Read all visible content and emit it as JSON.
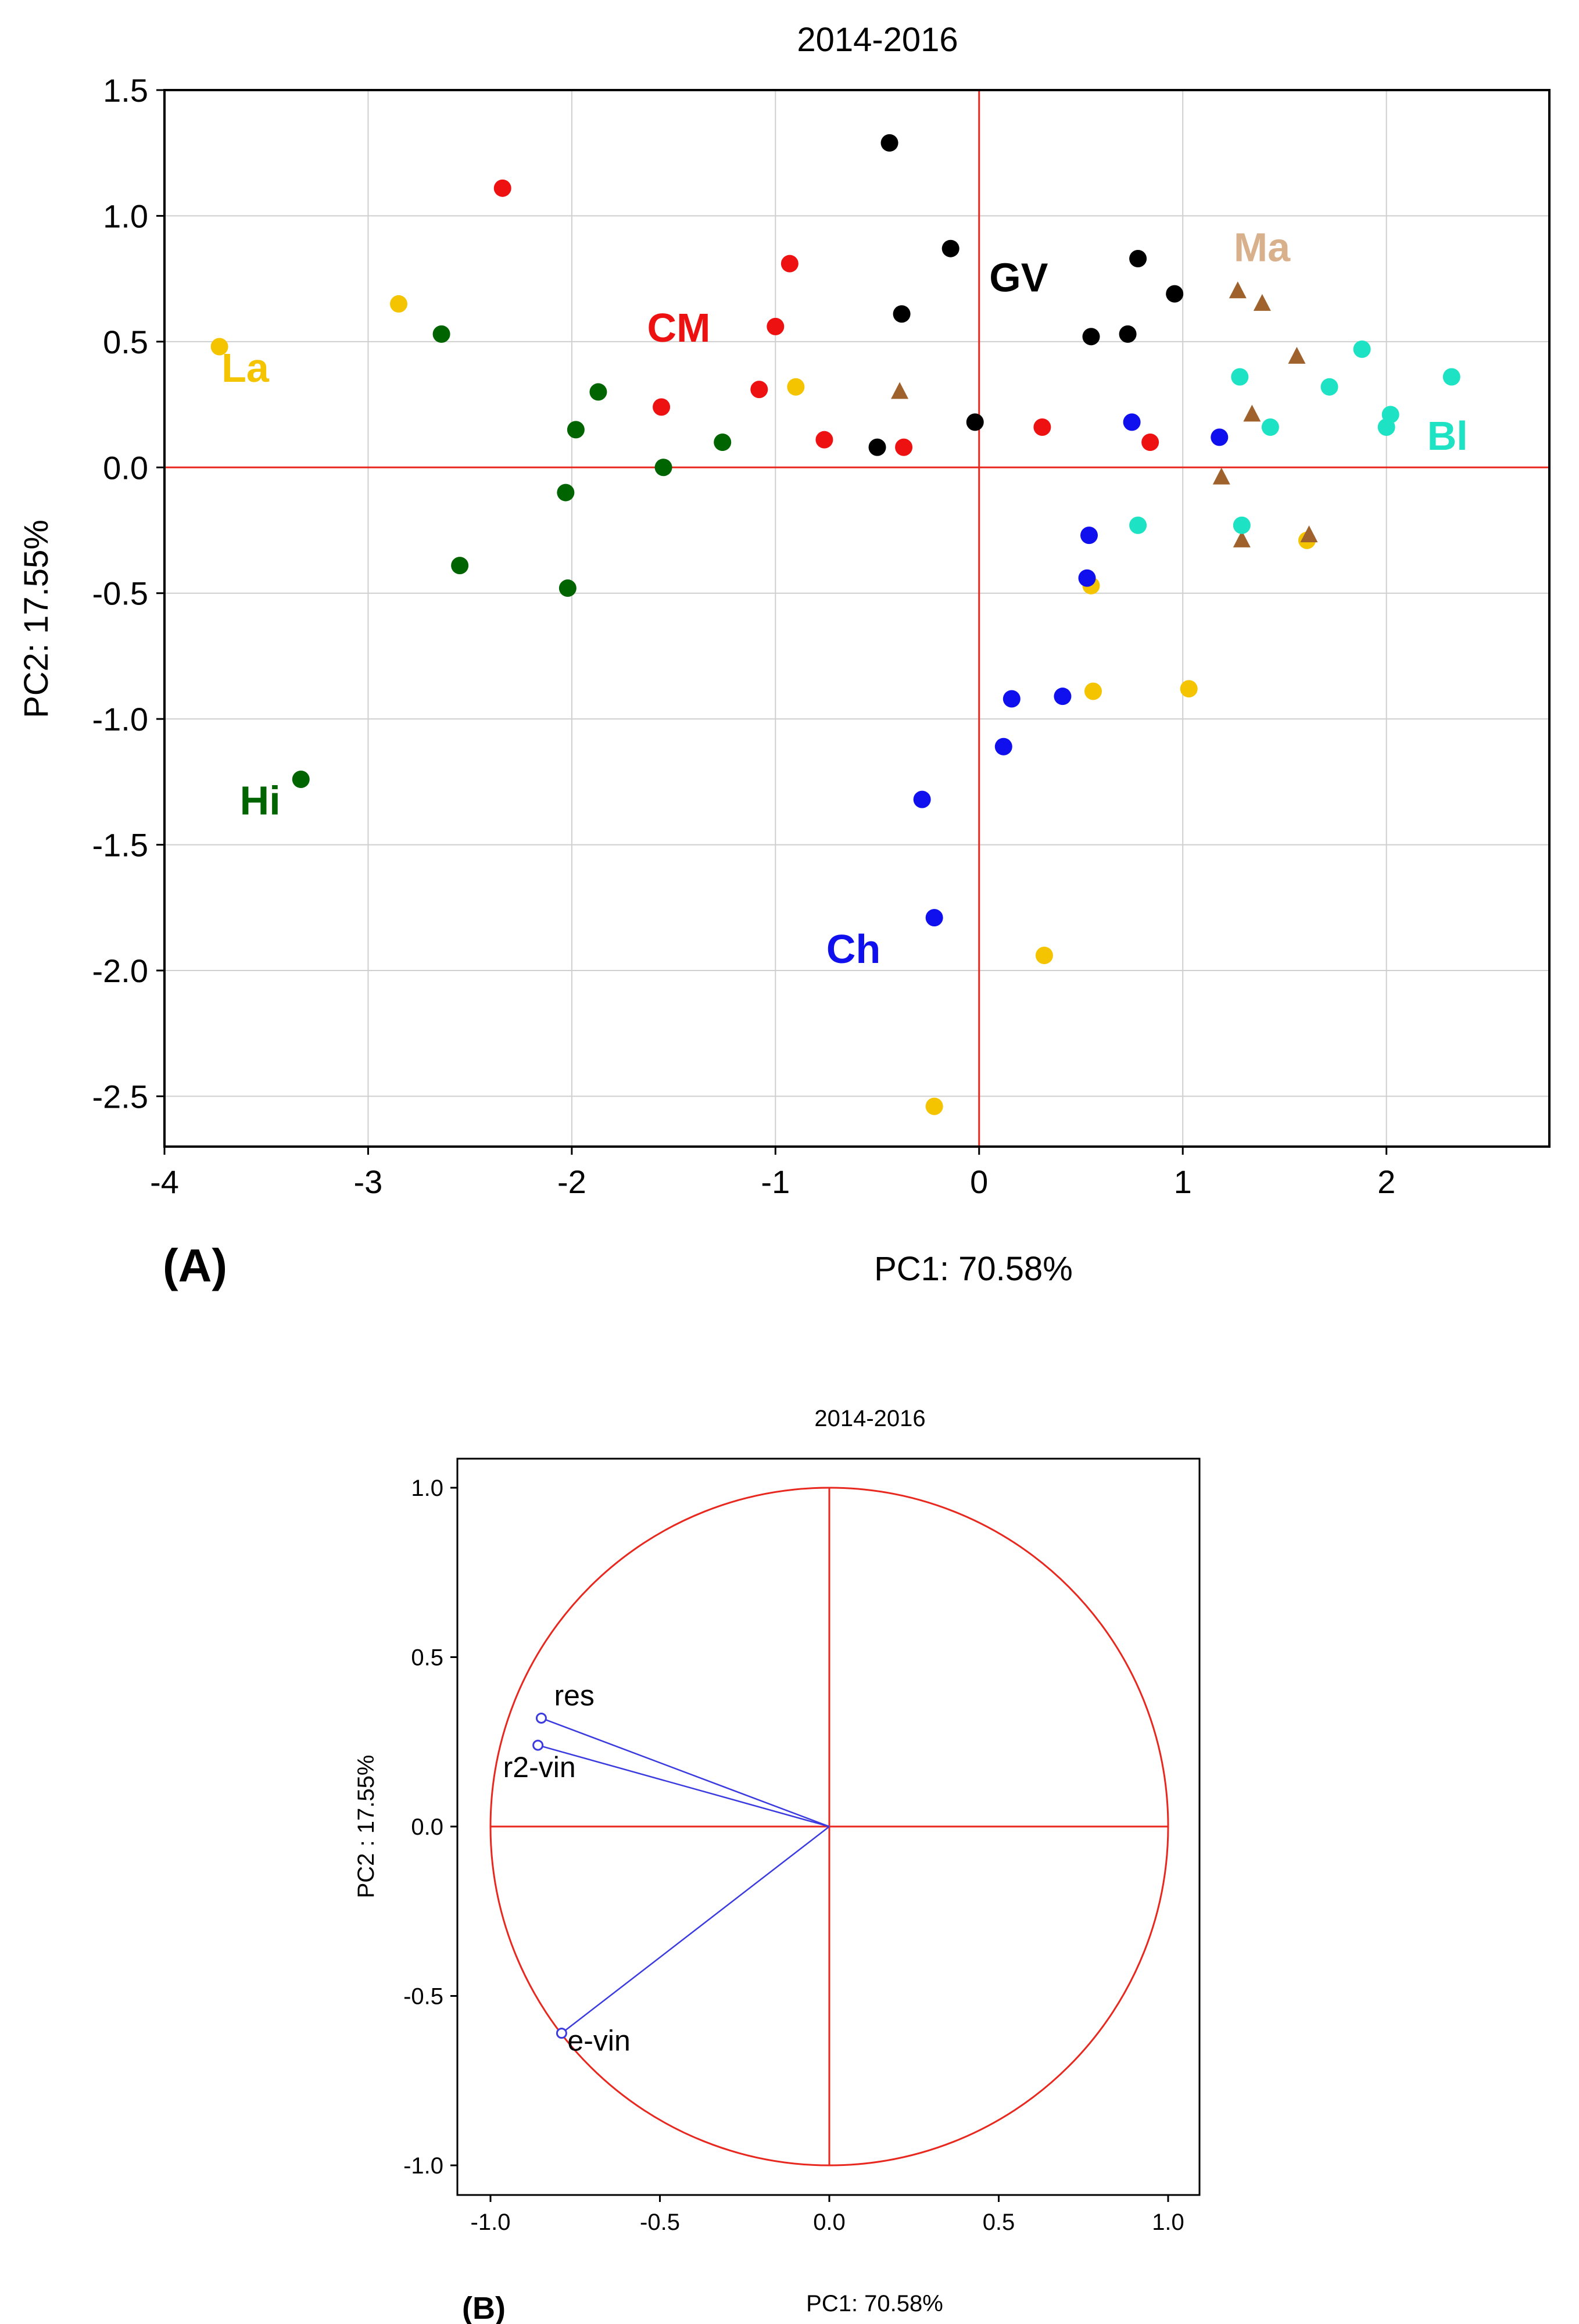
{
  "chart_data": [
    {
      "id": "A",
      "type": "scatter",
      "panel_label": "(A)",
      "title": "2014-2016",
      "xlabel": "PC1: 70.58%",
      "ylabel": "PC2: 17.55%",
      "xlim": [
        -4,
        2.8
      ],
      "ylim": [
        -2.7,
        1.5
      ],
      "xticks": [
        -4,
        -3,
        -2,
        -1,
        0,
        1,
        2
      ],
      "xtick_labels": [
        "-4",
        "-3",
        "-2",
        "-1",
        "0",
        "1",
        "2"
      ],
      "yticks": [
        1.5,
        1.0,
        0.5,
        0.0,
        -0.5,
        -1.0,
        -1.5,
        -2.0,
        -2.5
      ],
      "ytick_labels": [
        "1.5",
        "1.0",
        "0.5",
        "0.0",
        "-0.5",
        "-1.0",
        "-1.5",
        "-2.0",
        "-2.5"
      ],
      "grid": true,
      "reference_lines": {
        "x": 0,
        "y": 0,
        "color": "#e8281e"
      },
      "series": [
        {
          "name": "La",
          "color": "#f5c400",
          "marker": "circle",
          "label": {
            "text": "La",
            "x": -3.72,
            "y": 0.34
          },
          "points": [
            [
              -3.73,
              0.48
            ],
            [
              -2.85,
              0.65
            ],
            [
              -0.9,
              0.32
            ],
            [
              0.55,
              -0.47
            ],
            [
              0.56,
              -0.89
            ],
            [
              1.03,
              -0.88
            ],
            [
              1.61,
              -0.29
            ],
            [
              0.32,
              -1.94
            ],
            [
              -0.22,
              -2.54
            ]
          ]
        },
        {
          "name": "Hi",
          "color": "#006400",
          "marker": "circle",
          "label": {
            "text": "Hi",
            "x": -3.63,
            "y": -1.38
          },
          "points": [
            [
              -2.64,
              0.53
            ],
            [
              -1.87,
              0.3
            ],
            [
              -1.98,
              0.15
            ],
            [
              -1.26,
              0.1
            ],
            [
              -1.55,
              0.0
            ],
            [
              -2.03,
              -0.1
            ],
            [
              -2.55,
              -0.39
            ],
            [
              -2.02,
              -0.48
            ],
            [
              -3.33,
              -1.24
            ]
          ]
        },
        {
          "name": "CM",
          "color": "#ee1111",
          "marker": "circle",
          "label": {
            "text": "CM",
            "x": -1.63,
            "y": 0.5
          },
          "points": [
            [
              -2.34,
              1.11
            ],
            [
              -0.93,
              0.81
            ],
            [
              -1.0,
              0.56
            ],
            [
              -1.08,
              0.31
            ],
            [
              -1.56,
              0.24
            ],
            [
              -0.76,
              0.11
            ],
            [
              -0.37,
              0.08
            ],
            [
              0.31,
              0.16
            ],
            [
              0.84,
              0.1
            ]
          ]
        },
        {
          "name": "GV",
          "color": "#000000",
          "marker": "circle",
          "label": {
            "text": "GV",
            "x": 0.05,
            "y": 0.7
          },
          "points": [
            [
              -0.44,
              1.29
            ],
            [
              -0.14,
              0.87
            ],
            [
              0.78,
              0.83
            ],
            [
              0.96,
              0.69
            ],
            [
              -0.38,
              0.61
            ],
            [
              0.55,
              0.52
            ],
            [
              0.73,
              0.53
            ],
            [
              -0.02,
              0.18
            ],
            [
              -0.5,
              0.08
            ]
          ]
        },
        {
          "name": "Ma",
          "color": "#a0622d",
          "marker": "triangle",
          "label": {
            "text": "Ma",
            "x": 1.25,
            "y": 0.82,
            "color": "#d9b08c"
          },
          "points": [
            [
              1.27,
              0.7
            ],
            [
              1.39,
              0.65
            ],
            [
              1.56,
              0.44
            ],
            [
              -0.39,
              0.3
            ],
            [
              1.34,
              0.21
            ],
            [
              1.19,
              -0.04
            ],
            [
              1.29,
              -0.29
            ],
            [
              1.62,
              -0.27
            ]
          ]
        },
        {
          "name": "Ch",
          "color": "#1010ee",
          "marker": "circle",
          "label": {
            "text": "Ch",
            "x": -0.75,
            "y": -1.97
          },
          "points": [
            [
              0.75,
              0.18
            ],
            [
              1.18,
              0.12
            ],
            [
              0.54,
              -0.27
            ],
            [
              0.53,
              -0.44
            ],
            [
              0.41,
              -0.91
            ],
            [
              0.16,
              -0.92
            ],
            [
              0.12,
              -1.11
            ],
            [
              -0.28,
              -1.32
            ],
            [
              -0.22,
              -1.79
            ]
          ]
        },
        {
          "name": "Bl",
          "color": "#1de3c4",
          "marker": "circle",
          "label": {
            "text": "Bl",
            "x": 2.2,
            "y": 0.07
          },
          "points": [
            [
              1.28,
              0.36
            ],
            [
              1.88,
              0.47
            ],
            [
              2.32,
              0.36
            ],
            [
              1.72,
              0.32
            ],
            [
              2.02,
              0.21
            ],
            [
              1.43,
              0.16
            ],
            [
              2.0,
              0.16
            ],
            [
              0.78,
              -0.23
            ],
            [
              1.29,
              -0.23
            ]
          ]
        }
      ]
    },
    {
      "id": "B",
      "type": "scatter",
      "subtype": "correlation-circle",
      "panel_label": "(B)",
      "title": "2014-2016",
      "xlabel": "PC1: 70.58%",
      "ylabel": "PC2 : 17.55%",
      "xlim": [
        -1.1,
        1.1
      ],
      "ylim": [
        -1.1,
        1.1
      ],
      "xticks": [
        -1.0,
        -0.5,
        0.0,
        0.5,
        1.0
      ],
      "xtick_labels": [
        "-1.0",
        "-0.5",
        "0.0",
        "0.5",
        "1.0"
      ],
      "yticks": [
        1.0,
        0.5,
        0.0,
        -0.5,
        -1.0
      ],
      "ytick_labels": [
        "1.0",
        "0.5",
        "0.0",
        "-0.5",
        "-1.0"
      ],
      "grid": false,
      "circle_radius": 1.0,
      "reference_lines": {
        "x": 0,
        "y": 0,
        "color": "#e8281e"
      },
      "vector_color": "#3a3ae0",
      "vectors": [
        {
          "name": "res",
          "x": -0.85,
          "y": 0.32
        },
        {
          "name": "r2-vin",
          "x": -0.86,
          "y": 0.24
        },
        {
          "name": "e-vin",
          "x": -0.79,
          "y": -0.61
        }
      ]
    }
  ]
}
